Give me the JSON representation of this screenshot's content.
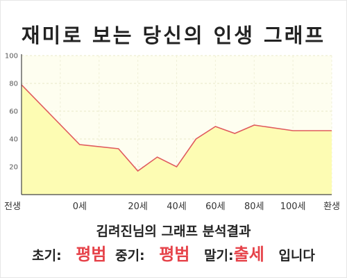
{
  "title": "재미로 보는 당신의 인생 그래프",
  "result": {
    "subtitle": "김려진님의 그래프 분석결과",
    "early_label": "초기:",
    "early_value": "평범",
    "middle_label": "중기:",
    "middle_value": "평범",
    "late_label": "말기:",
    "late_value": "출세",
    "ending": "입니다"
  },
  "colors": {
    "line": "#e05a5e",
    "fill": "#fdfcb3",
    "plot_bg": "#fefef0",
    "accent": "#e6434a"
  },
  "chart_data": {
    "type": "area",
    "title": "재미로 보는 당신의 인생 그래프",
    "xlabel": "",
    "ylabel": "",
    "x_ticks": [
      "전생",
      "0세",
      "20세",
      "40세",
      "60세",
      "80세",
      "100세",
      "환생"
    ],
    "y_ticks": [
      "20",
      "40",
      "60",
      "80",
      "100"
    ],
    "ylim": [
      0,
      100
    ],
    "grid": true,
    "series": [
      {
        "x": [
          -40,
          -10,
          10,
          20,
          30,
          40,
          50,
          60,
          70,
          80,
          100,
          120
        ],
        "values": [
          79,
          36,
          33,
          17,
          27,
          20,
          40,
          49,
          44,
          50,
          46,
          46
        ]
      }
    ]
  }
}
